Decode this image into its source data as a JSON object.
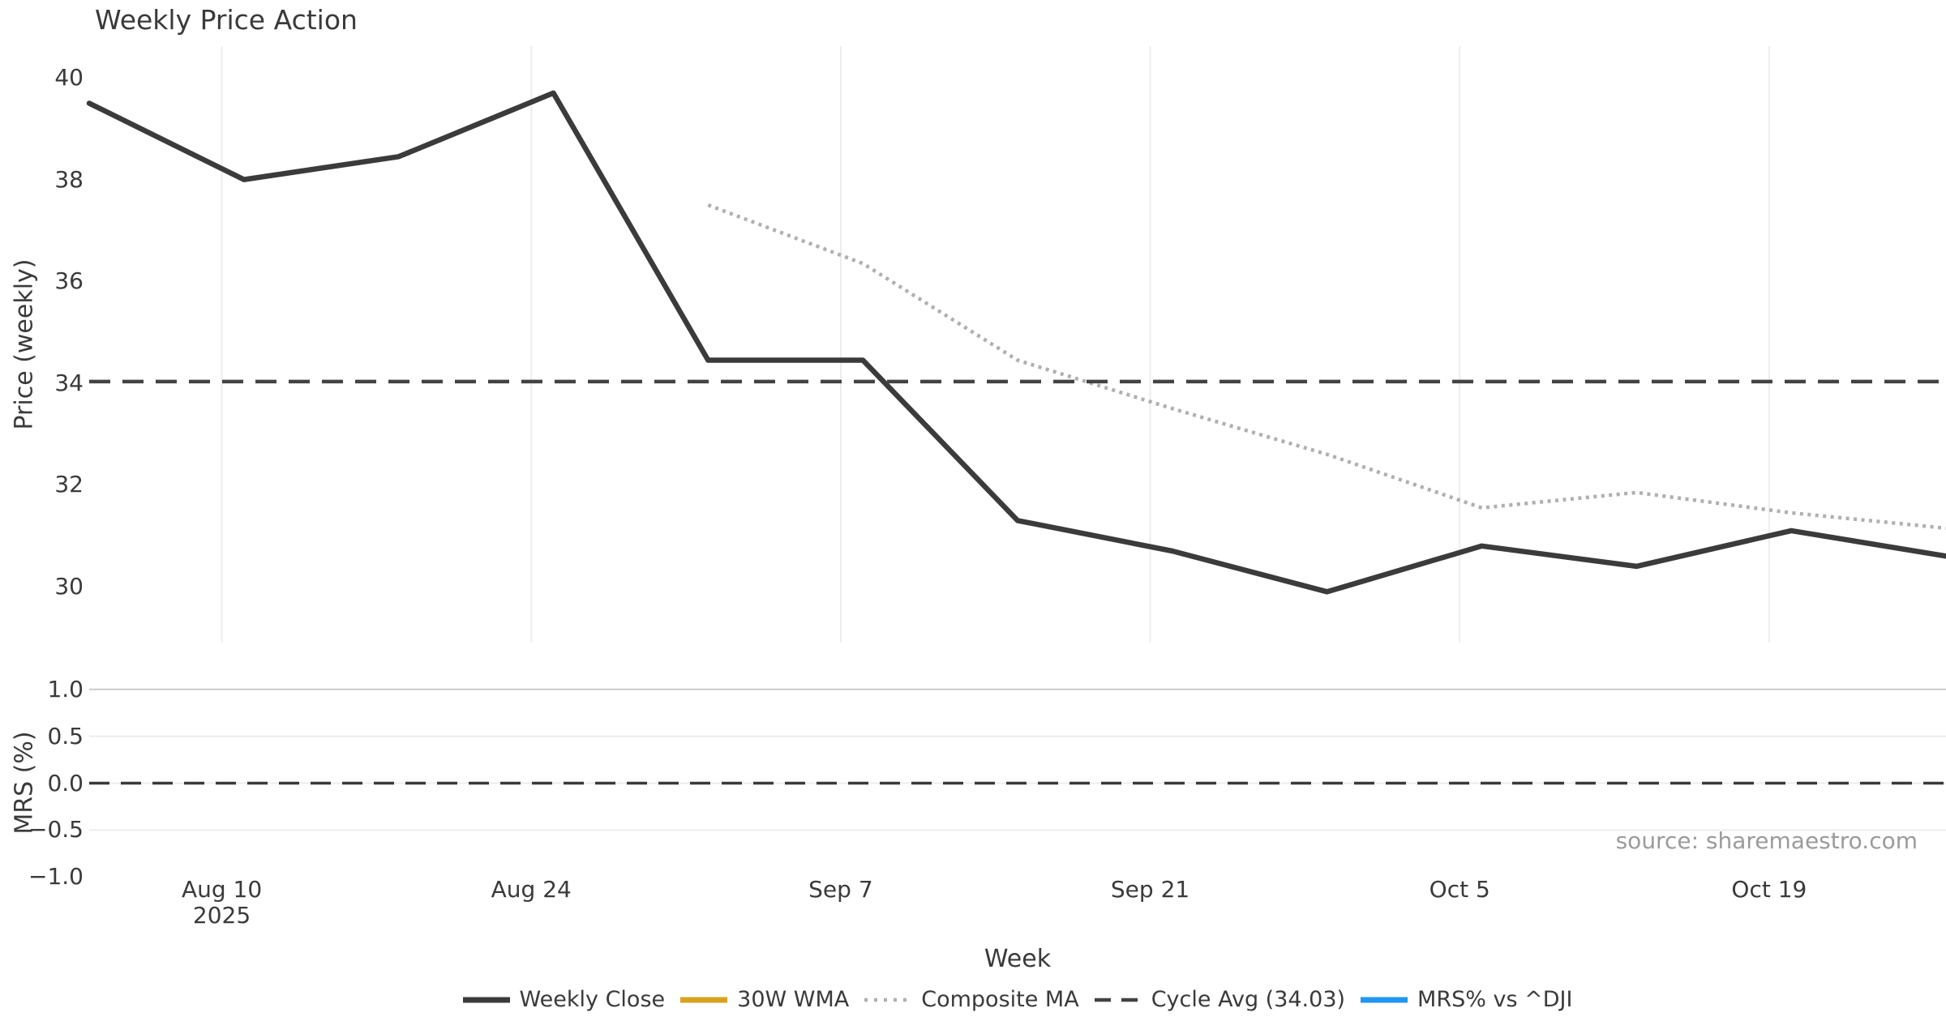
{
  "title": "Weekly Price Action",
  "source_note": "source: sharemaestro.com",
  "chart_data": {
    "type": "line",
    "title": "Weekly Price Action",
    "xlabel": "Week",
    "legend_position": "bottom center",
    "grid": {
      "price_panel": "vertical-only",
      "mrs_panel": "horizontal-only"
    },
    "x_dates": [
      "2025-08-04",
      "2025-08-11",
      "2025-08-18",
      "2025-08-25",
      "2025-09-01",
      "2025-09-08",
      "2025-09-15",
      "2025-09-22",
      "2025-09-29",
      "2025-10-06",
      "2025-10-13",
      "2025-10-20",
      "2025-10-27"
    ],
    "x_ticks": [
      {
        "label": "Aug 10",
        "sub": "2025",
        "day": 6
      },
      {
        "label": "Aug 24",
        "day": 20
      },
      {
        "label": "Sep 7",
        "day": 34
      },
      {
        "label": "Sep 21",
        "day": 48
      },
      {
        "label": "Oct 5",
        "day": 62
      },
      {
        "label": "Oct 19",
        "day": 76
      }
    ],
    "panels": [
      {
        "name": "price",
        "ylabel": "Price (weekly)",
        "ylim": [
          28.9,
          40.6
        ],
        "y_ticks": [
          {
            "label": "40",
            "value": 40
          },
          {
            "label": "38",
            "value": 38
          },
          {
            "label": "36",
            "value": 36
          },
          {
            "label": "34",
            "value": 34
          },
          {
            "label": "32",
            "value": 32
          },
          {
            "label": "30",
            "value": 30
          }
        ],
        "series": [
          {
            "name": "Weekly Close",
            "style": "solid",
            "color": "#3b3b3b",
            "values": [
              39.5,
              38.0,
              38.45,
              39.7,
              34.45,
              34.45,
              31.3,
              30.7,
              29.9,
              30.8,
              30.4,
              31.1,
              30.6
            ]
          },
          {
            "name": "30W WMA",
            "style": "solid",
            "color": "#d7a21e",
            "values": []
          },
          {
            "name": "Composite MA",
            "style": "dotted",
            "color": "#b0b0b0",
            "values": [
              null,
              null,
              null,
              null,
              37.5,
              36.35,
              34.45,
              33.5,
              32.6,
              31.55,
              31.85,
              31.45,
              31.15
            ]
          },
          {
            "name": "Cycle Avg (34.03)",
            "style": "dashed",
            "color": "#434343",
            "constant": 34.03
          }
        ]
      },
      {
        "name": "mrs",
        "ylabel": "MRS (%)",
        "ylim": [
          -1.0,
          1.0
        ],
        "zero_line_dashed": true,
        "y_ticks": [
          {
            "label": "1.0",
            "value": 1
          },
          {
            "label": "0.5",
            "value": 0.5
          },
          {
            "label": "0.0",
            "value": 0
          },
          {
            "label": "−0.5",
            "value": -0.5
          },
          {
            "label": "−1.0",
            "value": -1
          }
        ],
        "series": [
          {
            "name": "MRS% vs ^DJI",
            "style": "solid",
            "color": "#2196f3",
            "values": []
          }
        ]
      }
    ],
    "legend": [
      {
        "label": "Weekly Close",
        "color": "#3b3b3b",
        "style": "solid"
      },
      {
        "label": "30W WMA",
        "color": "#d7a21e",
        "style": "solid"
      },
      {
        "label": "Composite MA",
        "color": "#b0b0b0",
        "style": "dotted"
      },
      {
        "label": "Cycle Avg (34.03)",
        "color": "#434343",
        "style": "dashed"
      },
      {
        "label": "MRS% vs ^DJI",
        "color": "#2196f3",
        "style": "solid"
      }
    ]
  }
}
